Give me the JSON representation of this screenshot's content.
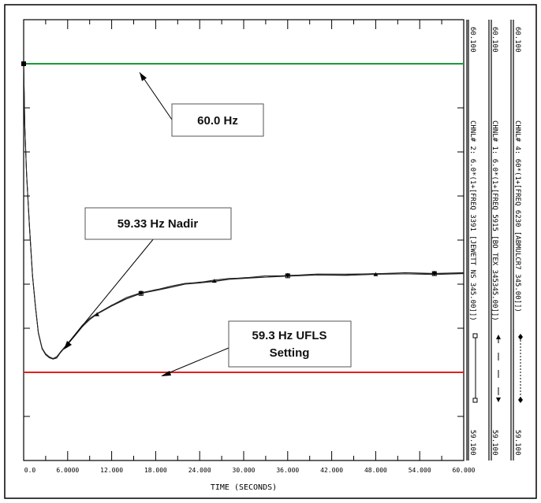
{
  "chart_data": {
    "type": "line",
    "xlabel": "TIME  (SECONDS)",
    "x_ticks": [
      "0.0",
      "6.0000",
      "12.000",
      "18.000",
      "24.000",
      "30.000",
      "36.000",
      "42.000",
      "48.000",
      "54.000",
      "60.000"
    ],
    "xlim": [
      0,
      60
    ],
    "ylim": [
      59.1,
      60.1
    ],
    "y_top_label": "60.100",
    "y_bottom_label": "59.100",
    "grid": false,
    "series": [
      {
        "name": "CHNL# 2: 6.0*(1+[FREQ  3391 [JEWETT NS  345.00]])",
        "color": "#222222",
        "marker": "square",
        "values": [
          [
            0,
            60.0
          ],
          [
            0.15,
            59.86
          ],
          [
            0.4,
            59.75
          ],
          [
            0.8,
            59.63
          ],
          [
            1.2,
            59.52
          ],
          [
            1.6,
            59.45
          ],
          [
            2.0,
            59.39
          ],
          [
            2.5,
            59.355
          ],
          [
            3.0,
            59.34
          ],
          [
            3.5,
            59.335
          ],
          [
            4.0,
            59.33
          ],
          [
            4.5,
            59.334
          ],
          [
            5.0,
            59.345
          ],
          [
            6.0,
            59.365
          ],
          [
            7.0,
            59.385
          ],
          [
            8.0,
            59.405
          ],
          [
            9.0,
            59.42
          ],
          [
            10.0,
            59.432
          ],
          [
            12.0,
            59.452
          ],
          [
            14.0,
            59.468
          ],
          [
            16.0,
            59.479
          ],
          [
            18.0,
            59.487
          ],
          [
            20.0,
            59.494
          ],
          [
            22.0,
            59.5
          ],
          [
            24.0,
            59.504
          ],
          [
            26.0,
            59.508
          ],
          [
            28.0,
            59.511
          ],
          [
            30.0,
            59.514
          ],
          [
            33.0,
            59.517
          ],
          [
            36.0,
            59.519
          ],
          [
            40.0,
            59.521
          ],
          [
            44.0,
            59.522
          ],
          [
            48.0,
            59.523
          ],
          [
            52.0,
            59.524
          ],
          [
            56.0,
            59.524
          ],
          [
            60.0,
            59.525
          ]
        ]
      },
      {
        "name": "CHNL# 1: 6.0*(1+[FREQ  5915 [BO TEX  345345.00]])",
        "color": "#222222",
        "marker": "triangle",
        "values": [
          [
            0,
            60.0
          ],
          [
            0.15,
            59.86
          ],
          [
            0.4,
            59.75
          ],
          [
            0.8,
            59.63
          ],
          [
            1.2,
            59.52
          ],
          [
            1.6,
            59.45
          ],
          [
            2.0,
            59.39
          ],
          [
            2.5,
            59.355
          ],
          [
            3.0,
            59.34
          ],
          [
            3.5,
            59.335
          ],
          [
            4.0,
            59.33
          ],
          [
            4.5,
            59.334
          ],
          [
            5.0,
            59.345
          ],
          [
            6.0,
            59.365
          ],
          [
            7.0,
            59.385
          ],
          [
            8.0,
            59.405
          ],
          [
            9.0,
            59.42
          ],
          [
            10.0,
            59.432
          ],
          [
            12.0,
            59.452
          ],
          [
            14.0,
            59.468
          ],
          [
            16.0,
            59.479
          ],
          [
            18.0,
            59.487
          ],
          [
            20.0,
            59.494
          ],
          [
            22.0,
            59.5
          ],
          [
            24.0,
            59.504
          ],
          [
            26.0,
            59.508
          ],
          [
            28.0,
            59.511
          ],
          [
            30.0,
            59.514
          ],
          [
            33.0,
            59.517
          ],
          [
            36.0,
            59.519
          ],
          [
            40.0,
            59.521
          ],
          [
            44.0,
            59.522
          ],
          [
            48.0,
            59.523
          ],
          [
            52.0,
            59.524
          ],
          [
            56.0,
            59.524
          ],
          [
            60.0,
            59.525
          ]
        ]
      },
      {
        "name": "CHNL# 4: 60*(1+[FREQ  6230 [ABMULCR7  345.00]])",
        "color": "#222222",
        "marker": "diamond",
        "values": [
          [
            0,
            60.0
          ],
          [
            0.15,
            59.86
          ],
          [
            0.4,
            59.75
          ],
          [
            0.8,
            59.63
          ],
          [
            1.2,
            59.52
          ],
          [
            1.6,
            59.45
          ],
          [
            2.0,
            59.39
          ],
          [
            2.5,
            59.355
          ],
          [
            3.0,
            59.34
          ],
          [
            3.5,
            59.335
          ],
          [
            4.0,
            59.33
          ],
          [
            4.5,
            59.334
          ],
          [
            5.0,
            59.345
          ],
          [
            6.0,
            59.365
          ],
          [
            7.0,
            59.385
          ],
          [
            8.0,
            59.405
          ],
          [
            9.0,
            59.42
          ],
          [
            10.0,
            59.432
          ],
          [
            12.0,
            59.452
          ],
          [
            14.0,
            59.468
          ],
          [
            16.0,
            59.479
          ],
          [
            18.0,
            59.487
          ],
          [
            20.0,
            59.494
          ],
          [
            22.0,
            59.5
          ],
          [
            24.0,
            59.504
          ],
          [
            26.0,
            59.508
          ],
          [
            28.0,
            59.511
          ],
          [
            30.0,
            59.514
          ],
          [
            33.0,
            59.517
          ],
          [
            36.0,
            59.519
          ],
          [
            40.0,
            59.521
          ],
          [
            44.0,
            59.522
          ],
          [
            48.0,
            59.523
          ],
          [
            52.0,
            59.524
          ],
          [
            56.0,
            59.524
          ],
          [
            60.0,
            59.525
          ]
        ]
      }
    ],
    "reference_lines": [
      {
        "name": "60.0 Hz",
        "y": 60.0,
        "color": "#1a9a3a"
      },
      {
        "name": "59.3 Hz UFLS",
        "y": 59.3,
        "color": "#e0201c"
      }
    ],
    "annotations": [
      {
        "text": "60.0 Hz"
      },
      {
        "text": "59.33 Hz Nadir"
      },
      {
        "text": "59.3 Hz UFLS",
        "text2": "Setting"
      }
    ]
  }
}
